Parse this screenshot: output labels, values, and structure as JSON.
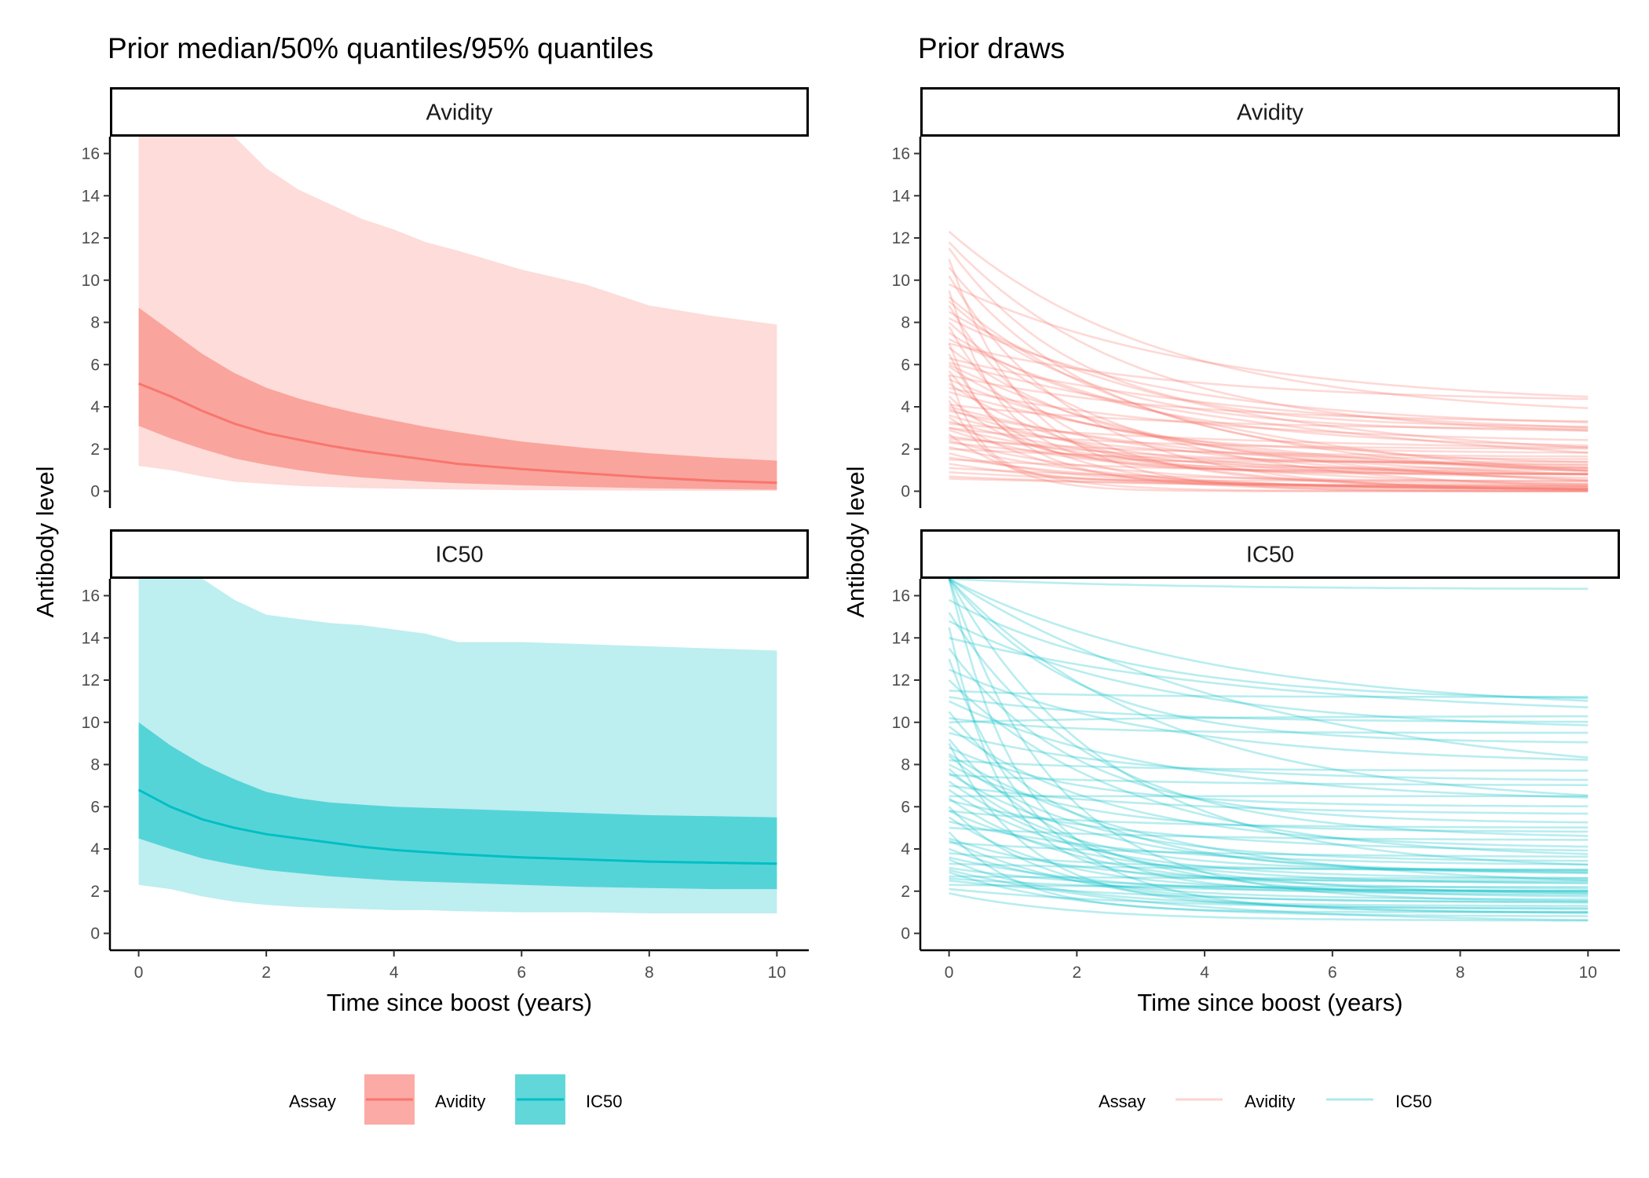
{
  "colors": {
    "avidity": "#F8766D",
    "ic50": "#00BFC4"
  },
  "chart_data": [
    {
      "type": "area",
      "title": "Prior median/50% quantiles/95% quantiles",
      "xlabel": "Time since boost (years)",
      "ylabel": "Antibody level",
      "xlim": [
        -0.45,
        10.5
      ],
      "ylim": [
        -0.8,
        16.8
      ],
      "x_ticks": [
        "0",
        "2",
        "4",
        "6",
        "8",
        "10"
      ],
      "y_ticks": [
        "0",
        "2",
        "4",
        "6",
        "8",
        "10",
        "12",
        "14",
        "16"
      ],
      "legend": {
        "title": "Assay",
        "placement": "bottom",
        "entries": [
          "Avidity",
          "IC50"
        ]
      },
      "facets": [
        {
          "label": "Avidity",
          "series": "Avidity",
          "x": [
            0,
            0.5,
            1,
            1.5,
            2,
            2.5,
            3,
            3.5,
            4,
            4.5,
            5,
            6,
            7,
            8,
            9,
            10
          ],
          "median": [
            5.1,
            4.5,
            3.8,
            3.2,
            2.75,
            2.45,
            2.15,
            1.9,
            1.7,
            1.5,
            1.3,
            1.05,
            0.85,
            0.65,
            0.5,
            0.4
          ],
          "q25": [
            3.1,
            2.5,
            2.0,
            1.55,
            1.25,
            1.0,
            0.8,
            0.65,
            0.55,
            0.45,
            0.38,
            0.28,
            0.2,
            0.14,
            0.1,
            0.07
          ],
          "q75": [
            8.7,
            7.6,
            6.5,
            5.6,
            4.9,
            4.4,
            4.0,
            3.65,
            3.35,
            3.05,
            2.8,
            2.35,
            2.05,
            1.8,
            1.6,
            1.45
          ],
          "q025": [
            1.2,
            1.0,
            0.7,
            0.45,
            0.35,
            0.25,
            0.2,
            0.15,
            0.12,
            0.1,
            0.08,
            0.05,
            0.04,
            0.03,
            0.02,
            0.02
          ],
          "q975": [
            16.8,
            16.8,
            16.8,
            16.8,
            15.3,
            14.3,
            13.6,
            12.9,
            12.4,
            11.8,
            11.4,
            10.5,
            9.8,
            8.8,
            8.3,
            7.9
          ]
        },
        {
          "label": "IC50",
          "series": "IC50",
          "x": [
            0,
            0.5,
            1,
            1.5,
            2,
            2.5,
            3,
            3.5,
            4,
            4.5,
            5,
            6,
            7,
            8,
            9,
            10
          ],
          "median": [
            6.8,
            6.0,
            5.4,
            5.0,
            4.7,
            4.5,
            4.3,
            4.1,
            3.95,
            3.85,
            3.75,
            3.6,
            3.5,
            3.4,
            3.35,
            3.3
          ],
          "q25": [
            4.5,
            4.0,
            3.55,
            3.25,
            3.0,
            2.85,
            2.7,
            2.6,
            2.5,
            2.45,
            2.4,
            2.3,
            2.2,
            2.15,
            2.1,
            2.1
          ],
          "q75": [
            10.0,
            8.9,
            8.0,
            7.3,
            6.7,
            6.4,
            6.2,
            6.1,
            6.0,
            5.95,
            5.9,
            5.8,
            5.7,
            5.6,
            5.55,
            5.5
          ],
          "q025": [
            2.3,
            2.1,
            1.75,
            1.5,
            1.35,
            1.25,
            1.2,
            1.15,
            1.1,
            1.1,
            1.05,
            1.0,
            1.0,
            0.95,
            0.95,
            0.95
          ],
          "q975": [
            16.8,
            16.8,
            16.8,
            15.8,
            15.1,
            14.9,
            14.7,
            14.6,
            14.4,
            14.2,
            13.8,
            13.8,
            13.7,
            13.6,
            13.5,
            13.4
          ]
        }
      ]
    },
    {
      "type": "line",
      "title": "Prior draws",
      "xlabel": "Time since boost (years)",
      "ylabel": "Antibody level",
      "xlim": [
        -0.45,
        10.5
      ],
      "ylim": [
        -0.8,
        16.8
      ],
      "x_ticks": [
        "0",
        "2",
        "4",
        "6",
        "8",
        "10"
      ],
      "y_ticks": [
        "0",
        "2",
        "4",
        "6",
        "8",
        "10",
        "12",
        "14",
        "16"
      ],
      "legend": {
        "title": "Assay",
        "placement": "bottom",
        "entries": [
          "Avidity",
          "IC50"
        ]
      },
      "model": "y = b + (a - b) * exp(-r * x)",
      "facets": [
        {
          "label": "Avidity",
          "series": "Avidity",
          "draws": [
            {
              "a": 12.3,
              "b": 3.5,
              "r": 0.3
            },
            {
              "a": 11.8,
              "b": 2.6,
              "r": 0.35
            },
            {
              "a": 11.5,
              "b": 3.0,
              "r": 0.5
            },
            {
              "a": 10.6,
              "b": 1.2,
              "r": 0.4
            },
            {
              "a": 9.8,
              "b": 4.0,
              "r": 0.25
            },
            {
              "a": 9.2,
              "b": 0.5,
              "r": 0.3
            },
            {
              "a": 9.0,
              "b": 2.8,
              "r": 0.45
            },
            {
              "a": 8.8,
              "b": 0.2,
              "r": 0.6
            },
            {
              "a": 8.5,
              "b": 1.5,
              "r": 0.25
            },
            {
              "a": 8.2,
              "b": 3.0,
              "r": 0.3
            },
            {
              "a": 7.8,
              "b": 0.8,
              "r": 0.8
            },
            {
              "a": 7.5,
              "b": 2.0,
              "r": 0.35
            },
            {
              "a": 7.2,
              "b": 0.0,
              "r": 0.2
            },
            {
              "a": 7.0,
              "b": 4.2,
              "r": 0.28
            },
            {
              "a": 6.8,
              "b": 1.0,
              "r": 0.4
            },
            {
              "a": 6.5,
              "b": 0.3,
              "r": 1.0
            },
            {
              "a": 6.3,
              "b": 2.5,
              "r": 0.2
            },
            {
              "a": 6.1,
              "b": 0.6,
              "r": 0.15
            },
            {
              "a": 5.9,
              "b": 1.8,
              "r": 0.5
            },
            {
              "a": 5.7,
              "b": 0.1,
              "r": 0.7
            },
            {
              "a": 5.5,
              "b": 3.2,
              "r": 0.3
            },
            {
              "a": 5.3,
              "b": 0.9,
              "r": 0.3
            },
            {
              "a": 5.1,
              "b": 0.0,
              "r": 0.4
            },
            {
              "a": 4.9,
              "b": 2.2,
              "r": 0.25
            },
            {
              "a": 4.7,
              "b": 0.4,
              "r": 0.2
            },
            {
              "a": 4.5,
              "b": 1.1,
              "r": 0.9
            },
            {
              "a": 4.3,
              "b": 0.0,
              "r": 1.4
            },
            {
              "a": 4.1,
              "b": 2.9,
              "r": 0.3
            },
            {
              "a": 3.9,
              "b": 0.7,
              "r": 0.35
            },
            {
              "a": 3.8,
              "b": 0.2,
              "r": 0.18
            },
            {
              "a": 3.6,
              "b": 1.5,
              "r": 0.45
            },
            {
              "a": 3.5,
              "b": 0.0,
              "r": 0.6
            },
            {
              "a": 3.3,
              "b": 0.5,
              "r": 0.3
            },
            {
              "a": 3.2,
              "b": 1.9,
              "r": 0.2
            },
            {
              "a": 3.0,
              "b": 0.1,
              "r": 0.25
            },
            {
              "a": 2.9,
              "b": 0.8,
              "r": 0.5
            },
            {
              "a": 2.7,
              "b": 0.0,
              "r": 0.9
            },
            {
              "a": 2.6,
              "b": 1.2,
              "r": 0.3
            },
            {
              "a": 2.4,
              "b": 0.3,
              "r": 0.4
            },
            {
              "a": 2.3,
              "b": 0.6,
              "r": 0.2
            },
            {
              "a": 2.1,
              "b": 0.0,
              "r": 0.35
            },
            {
              "a": 2.0,
              "b": 1.0,
              "r": 0.15
            },
            {
              "a": 1.8,
              "b": 0.2,
              "r": 0.5
            },
            {
              "a": 1.6,
              "b": 0.0,
              "r": 0.3
            },
            {
              "a": 1.5,
              "b": 0.7,
              "r": 0.2
            },
            {
              "a": 1.3,
              "b": 0.1,
              "r": 0.4
            },
            {
              "a": 1.1,
              "b": 0.4,
              "r": 0.25
            },
            {
              "a": 0.9,
              "b": 0.0,
              "r": 0.2
            },
            {
              "a": 0.7,
              "b": 0.2,
              "r": 0.3
            },
            {
              "a": 0.6,
              "b": 0.0,
              "r": 0.15
            },
            {
              "a": 10.2,
              "b": 0.0,
              "r": 0.5
            },
            {
              "a": 8.0,
              "b": 0.0,
              "r": 0.35
            },
            {
              "a": 6.0,
              "b": 0.0,
              "r": 0.25
            },
            {
              "a": 4.0,
              "b": 0.0,
              "r": 0.2
            },
            {
              "a": 9.5,
              "b": 1.0,
              "r": 1.2
            },
            {
              "a": 7.0,
              "b": 1.4,
              "r": 1.5
            },
            {
              "a": 5.5,
              "b": 0.5,
              "r": 2.0
            },
            {
              "a": 11.0,
              "b": 0.0,
              "r": 0.8
            },
            {
              "a": 3.0,
              "b": 2.0,
              "r": 0.4
            },
            {
              "a": 2.5,
              "b": 1.6,
              "r": 0.3
            }
          ]
        },
        {
          "label": "IC50",
          "series": "IC50",
          "draws": [
            {
              "a": 16.8,
              "b": 16.3,
              "r": 0.3
            },
            {
              "a": 16.8,
              "b": 10.5,
              "r": 0.25
            },
            {
              "a": 16.8,
              "b": 9.0,
              "r": 0.5
            },
            {
              "a": 16.8,
              "b": 6.0,
              "r": 0.3
            },
            {
              "a": 16.8,
              "b": 3.0,
              "r": 0.4
            },
            {
              "a": 16.8,
              "b": 1.5,
              "r": 0.6
            },
            {
              "a": 16.8,
              "b": 7.0,
              "r": 0.2
            },
            {
              "a": 16.8,
              "b": 2.0,
              "r": 0.9
            },
            {
              "a": 15.8,
              "b": 11.0,
              "r": 0.35
            },
            {
              "a": 15.2,
              "b": 4.5,
              "r": 0.45
            },
            {
              "a": 14.8,
              "b": 9.6,
              "r": 0.3
            },
            {
              "a": 14.5,
              "b": 2.5,
              "r": 1.2
            },
            {
              "a": 14.0,
              "b": 10.2,
              "r": 0.2
            },
            {
              "a": 13.5,
              "b": 5.2,
              "r": 0.5
            },
            {
              "a": 13.0,
              "b": 1.0,
              "r": 0.7
            },
            {
              "a": 12.5,
              "b": 8.0,
              "r": 0.3
            },
            {
              "a": 12.0,
              "b": 3.5,
              "r": 0.35
            },
            {
              "a": 11.5,
              "b": 11.2,
              "r": 0.5
            },
            {
              "a": 11.2,
              "b": 10.0,
              "r": 0.4
            },
            {
              "a": 11.0,
              "b": 6.2,
              "r": 0.3
            },
            {
              "a": 10.5,
              "b": 2.8,
              "r": 0.5
            },
            {
              "a": 10.2,
              "b": 9.5,
              "r": 0.6
            },
            {
              "a": 10.0,
              "b": 10.3,
              "r": 0.3
            },
            {
              "a": 9.8,
              "b": 4.0,
              "r": 0.4
            },
            {
              "a": 9.5,
              "b": 7.2,
              "r": 0.35
            },
            {
              "a": 9.0,
              "b": 1.2,
              "r": 0.8
            },
            {
              "a": 8.8,
              "b": 6.0,
              "r": 0.5
            },
            {
              "a": 8.5,
              "b": 2.2,
              "r": 0.3
            },
            {
              "a": 8.2,
              "b": 7.7,
              "r": 0.4
            },
            {
              "a": 8.0,
              "b": 4.8,
              "r": 0.5
            },
            {
              "a": 7.8,
              "b": 3.0,
              "r": 0.6
            },
            {
              "a": 7.5,
              "b": 7.0,
              "r": 0.3
            },
            {
              "a": 7.2,
              "b": 1.8,
              "r": 0.4
            },
            {
              "a": 7.0,
              "b": 5.6,
              "r": 0.3
            },
            {
              "a": 6.8,
              "b": 2.6,
              "r": 0.5
            },
            {
              "a": 6.5,
              "b": 6.5,
              "r": 0.3
            },
            {
              "a": 6.3,
              "b": 3.8,
              "r": 0.3
            },
            {
              "a": 6.0,
              "b": 1.5,
              "r": 0.7
            },
            {
              "a": 5.8,
              "b": 5.0,
              "r": 0.4
            },
            {
              "a": 5.5,
              "b": 2.0,
              "r": 0.6
            },
            {
              "a": 5.3,
              "b": 3.2,
              "r": 0.35
            },
            {
              "a": 5.0,
              "b": 4.4,
              "r": 0.3
            },
            {
              "a": 4.8,
              "b": 1.0,
              "r": 0.9
            },
            {
              "a": 4.5,
              "b": 2.4,
              "r": 0.5
            },
            {
              "a": 4.3,
              "b": 3.6,
              "r": 0.3
            },
            {
              "a": 4.0,
              "b": 1.6,
              "r": 0.5
            },
            {
              "a": 3.8,
              "b": 2.9,
              "r": 0.3
            },
            {
              "a": 3.5,
              "b": 1.3,
              "r": 0.6
            },
            {
              "a": 3.3,
              "b": 3.0,
              "r": 0.3
            },
            {
              "a": 3.1,
              "b": 2.0,
              "r": 0.4
            },
            {
              "a": 2.9,
              "b": 0.8,
              "r": 0.5
            },
            {
              "a": 2.7,
              "b": 2.6,
              "r": 0.3
            },
            {
              "a": 2.5,
              "b": 1.4,
              "r": 0.3
            },
            {
              "a": 2.3,
              "b": 2.2,
              "r": 0.4
            },
            {
              "a": 2.1,
              "b": 1.1,
              "r": 0.3
            },
            {
              "a": 1.9,
              "b": 0.6,
              "r": 0.5
            },
            {
              "a": 3.0,
              "b": 0.5,
              "r": 0.3
            },
            {
              "a": 2.6,
              "b": 1.9,
              "r": 0.3
            },
            {
              "a": 7.6,
              "b": 2.8,
              "r": 0.4
            },
            {
              "a": 9.2,
              "b": 1.7,
              "r": 0.5
            },
            {
              "a": 5.8,
              "b": 2.3,
              "r": 0.4
            },
            {
              "a": 4.4,
              "b": 0.9,
              "r": 0.4
            },
            {
              "a": 6.4,
              "b": 2.1,
              "r": 0.5
            },
            {
              "a": 8.4,
              "b": 3.4,
              "r": 0.5
            },
            {
              "a": 3.6,
              "b": 1.8,
              "r": 0.4
            }
          ]
        }
      ]
    }
  ]
}
